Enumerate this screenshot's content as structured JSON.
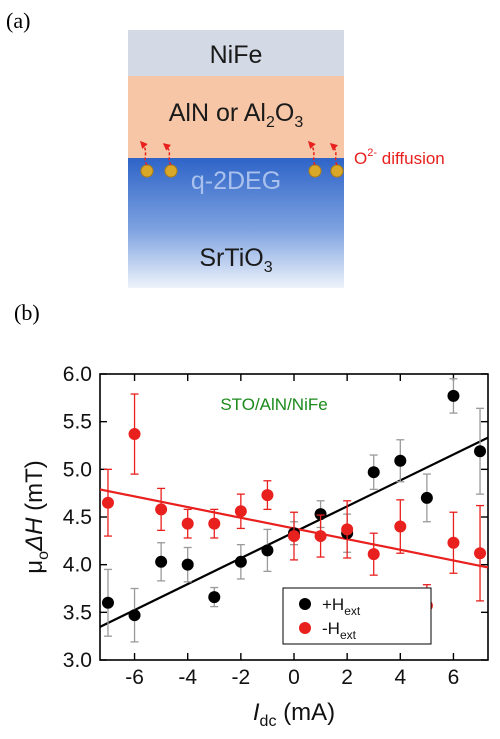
{
  "panel_a": {
    "label": "(a)",
    "layers": {
      "top": "NiFe",
      "middle_1": "AlN or Al",
      "middle_sub": "2",
      "middle_2": "O",
      "middle_sub2": "3",
      "channel": "q-2DEG",
      "substrate_1": "SrTiO",
      "substrate_sub": "3"
    },
    "annotation_1": "O",
    "annotation_sup": "2-",
    "annotation_2": " diffusion",
    "colors": {
      "nife": "#d3dae5",
      "barrier": "#f6c6a6",
      "substrate_top": "#2e64c8",
      "substrate_bottom": "#eef3fb",
      "dot": "#d9a829",
      "arrow": "#e8201e",
      "annotation": "#e8201e"
    }
  },
  "panel_b": {
    "label": "(b)",
    "chart_data": {
      "type": "scatter",
      "annotation": "STO/AlN/NiFe",
      "annotation_color": "#1b8a1b",
      "xlim": [
        -7.3,
        7.3
      ],
      "ylim": [
        3.0,
        6.0
      ],
      "xticks": [
        "-6",
        "-4",
        "-2",
        "0",
        "2",
        "4",
        "6"
      ],
      "xtick_values": [
        -6,
        -4,
        -2,
        0,
        2,
        4,
        6
      ],
      "yticks": [
        "3.0",
        "3.5",
        "4.0",
        "4.5",
        "5.0",
        "5.5",
        "6.0"
      ],
      "ytick_values": [
        3.0,
        3.5,
        4.0,
        4.5,
        5.0,
        5.5,
        6.0
      ],
      "ylabel_parts": [
        "μ",
        "o",
        "ΔH",
        " (mT)"
      ],
      "xlabel_parts": [
        "I",
        "dc",
        " (mA)"
      ],
      "series": [
        {
          "name": "+H",
          "name_sub": "ext",
          "color": "#000000",
          "x": [
            -7,
            -6,
            -5,
            -4,
            -3,
            -2,
            -1,
            0,
            1,
            2,
            3,
            4,
            5,
            6,
            7
          ],
          "y": [
            3.6,
            3.47,
            4.03,
            4.0,
            3.66,
            4.03,
            4.15,
            4.33,
            4.53,
            4.33,
            4.97,
            5.09,
            4.7,
            5.77,
            5.19
          ],
          "err": [
            0.35,
            0.28,
            0.2,
            0.18,
            0.1,
            0.18,
            0.22,
            0.12,
            0.14,
            0.2,
            0.18,
            0.22,
            0.25,
            0.18,
            0.45
          ],
          "fit": {
            "slope": 0.136,
            "intercept": 4.34
          }
        },
        {
          "name": "-H",
          "name_sub": "ext",
          "color": "#e8201e",
          "x": [
            -7,
            -6,
            -5,
            -4,
            -3,
            -2,
            -1,
            0,
            1,
            2,
            3,
            4,
            5,
            6,
            7
          ],
          "y": [
            4.65,
            5.37,
            4.58,
            4.43,
            4.43,
            4.56,
            4.73,
            4.3,
            4.3,
            4.37,
            4.11,
            4.4,
            3.57,
            4.23,
            4.12
          ],
          "err": [
            0.35,
            0.42,
            0.22,
            0.15,
            0.15,
            0.18,
            0.15,
            0.25,
            0.22,
            0.3,
            0.22,
            0.28,
            0.22,
            0.32,
            0.5
          ],
          "fit": {
            "slope": -0.056,
            "intercept": 4.38
          }
        }
      ]
    }
  }
}
